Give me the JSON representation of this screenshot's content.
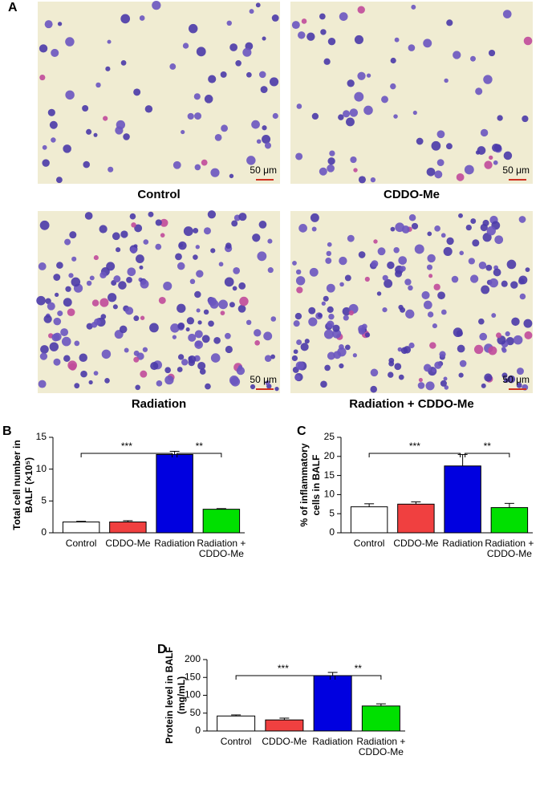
{
  "micrographs": {
    "panel_label": "A",
    "images": [
      {
        "caption": "Control",
        "scale_bar": "50 μm"
      },
      {
        "caption": "CDDO-Me",
        "scale_bar": "50 μm"
      },
      {
        "caption": "Radiation",
        "scale_bar": "50 μm"
      },
      {
        "caption": "Radiation + CDDO-Me",
        "scale_bar": "50 μm"
      }
    ]
  },
  "chart_data": [
    {
      "type": "bar",
      "panel_label": "B",
      "y_label": [
        "Total cell number in",
        "BALF (×10⁵)"
      ],
      "categories": [
        "Control",
        "CDDO-Me",
        "Radiation",
        "Radiation + CDDO-Me"
      ],
      "values": [
        1.7,
        1.7,
        12.3,
        3.7
      ],
      "errors": [
        0.1,
        0.2,
        0.5,
        0.1
      ],
      "colors": [
        "#ffffff",
        "#f04040",
        "#0000e0",
        "#00e000"
      ],
      "ylim": [
        0,
        15
      ],
      "yticks": [
        0,
        5,
        10,
        15
      ],
      "annotations": [
        "***",
        "**"
      ]
    },
    {
      "type": "bar",
      "panel_label": "C",
      "y_label": [
        "% of inflammatory",
        "cells in BALF"
      ],
      "categories": [
        "Control",
        "CDDO-Me",
        "Radiation",
        "Radiation + CDDO-Me"
      ],
      "values": [
        6.8,
        7.5,
        17.5,
        6.6
      ],
      "errors": [
        0.8,
        0.6,
        3,
        1.1
      ],
      "colors": [
        "#ffffff",
        "#f04040",
        "#0000e0",
        "#00e000"
      ],
      "ylim": [
        0,
        25
      ],
      "yticks": [
        0,
        5,
        10,
        15,
        20,
        25
      ],
      "annotations": [
        "***",
        "**"
      ]
    },
    {
      "type": "bar",
      "panel_label": "D",
      "y_label": [
        "Protein level in BALF",
        "(mg/mL)"
      ],
      "categories": [
        "Control",
        "CDDO-Me",
        "Radiation",
        "Radiation + CDDO-Me"
      ],
      "values": [
        42,
        31,
        155,
        70
      ],
      "errors": [
        3,
        5,
        9,
        6
      ],
      "colors": [
        "#ffffff",
        "#f04040",
        "#0000e0",
        "#00e000"
      ],
      "ylim": [
        0,
        200
      ],
      "yticks": [
        0,
        50,
        100,
        150,
        200
      ],
      "annotations": [
        "***",
        "**"
      ]
    }
  ]
}
